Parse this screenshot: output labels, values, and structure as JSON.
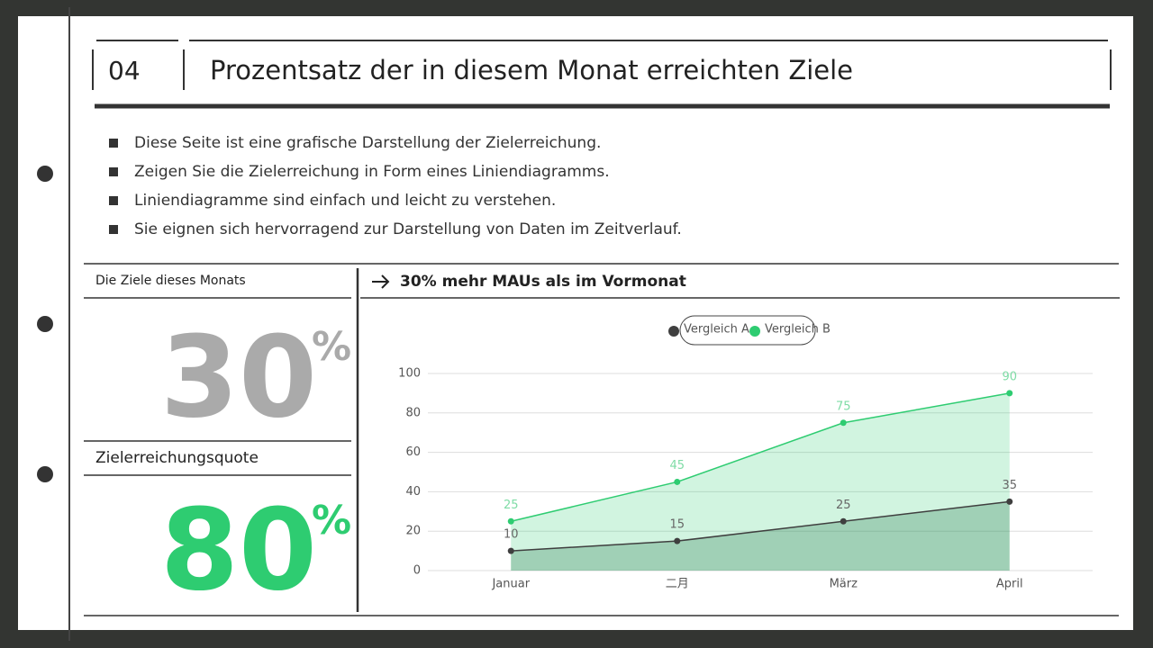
{
  "header": {
    "number": "04",
    "title": "Prozentsatz der in diesem Monat erreichten Ziele"
  },
  "bullets": [
    "Diese Seite ist eine grafische Darstellung der Zielerreichung.",
    "Zeigen Sie die Zielerreichung in Form eines Liniendiagramms.",
    "Liniendiagramme sind einfach und leicht zu verstehen.",
    "Sie eignen sich hervorragend zur Darstellung von Daten im Zeitverlauf."
  ],
  "panels": {
    "goal_label": "Die Ziele dieses Monats",
    "goal": {
      "value": 30,
      "unit": "%"
    },
    "rate_label": "Zielerreichungsquote",
    "rate": {
      "value": 80,
      "unit": "%"
    }
  },
  "chart_data": {
    "type": "line",
    "title": "30% mehr MAUs als im Vormonat",
    "categories": [
      "Januar",
      "二月",
      "März",
      "April"
    ],
    "series": [
      {
        "name": "Vergleich A",
        "color": "#3f3f3f",
        "area_color": "#2e7d55",
        "values": [
          10,
          15,
          25,
          35
        ]
      },
      {
        "name": "Vergleich B",
        "color": "#2ecc71",
        "area_color": "#2ecc71",
        "values": [
          25,
          45,
          75,
          90
        ]
      }
    ],
    "ylim": [
      0,
      100
    ],
    "yticks": [
      0,
      20,
      40,
      60,
      80,
      100
    ],
    "grid": true,
    "legend": "top"
  }
}
